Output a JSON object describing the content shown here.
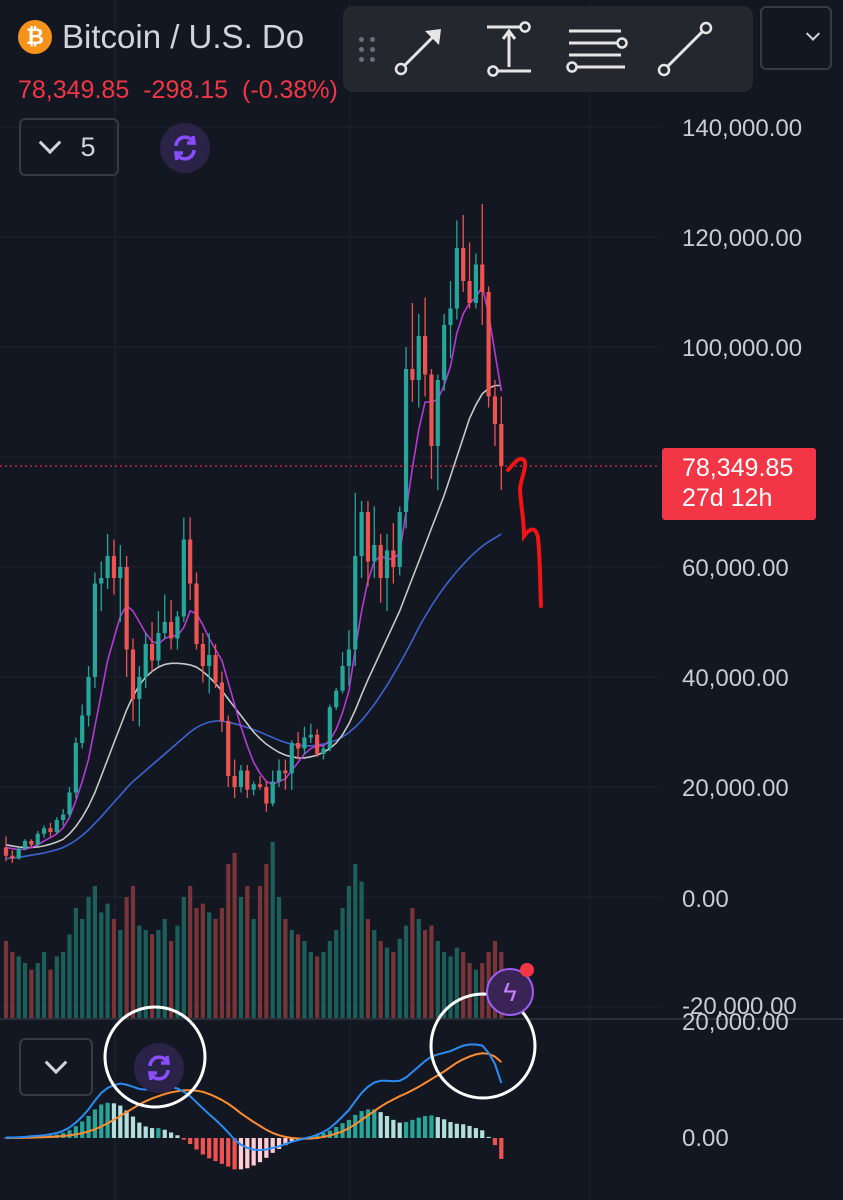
{
  "header": {
    "title": "Bitcoin / U.S. Do",
    "last_price": "78,349.85",
    "change": "-298.15",
    "change_pct": "(-0.38%)",
    "indicator_count": "5",
    "logo_symbol": "₿"
  },
  "toolbar": {
    "tools": [
      "arrow-tool",
      "price-range-tool",
      "parallel-lines-tool",
      "trend-line-tool"
    ]
  },
  "price_tag": {
    "price": "78,349.85",
    "countdown": "27d 12h"
  },
  "price_axis": {
    "labels": [
      "140,000.00",
      "120,000.00",
      "100,000.00",
      "60,000.00",
      "40,000.00",
      "20,000.00",
      "0.00",
      "-20,000.00"
    ],
    "macd_labels": [
      "20,000.00",
      "0.00"
    ]
  },
  "colors": {
    "background": "#131722",
    "up": "#26a69a",
    "down": "#ef5350",
    "up_volume": "#1f6b64",
    "down_volume": "#8b3a3a",
    "ma_fast": "#b43ad6",
    "ma_mid": "#c8c8c8",
    "ma_slow": "#3c64d2",
    "macd_line": "#2b8cf3",
    "signal_line": "#ff8c2e",
    "drawing": "#f01414",
    "price_tag": "#f23645"
  },
  "chart_data": {
    "type": "candlestick",
    "title": "Bitcoin / U.S. Dollar",
    "price_ylim": [
      -20000,
      140000
    ],
    "last_price": 78349.85,
    "candles": [
      [
        9000,
        11000,
        6500,
        7500
      ],
      [
        7500,
        8500,
        6200,
        7000
      ],
      [
        7000,
        9000,
        6800,
        8800
      ],
      [
        8800,
        10500,
        8500,
        10200
      ],
      [
        10200,
        10500,
        9000,
        9500
      ],
      [
        9500,
        12000,
        9200,
        11500
      ],
      [
        11500,
        13000,
        10800,
        12500
      ],
      [
        12500,
        13500,
        11000,
        11800
      ],
      [
        11800,
        14500,
        11500,
        14000
      ],
      [
        14000,
        16000,
        13000,
        15000
      ],
      [
        15000,
        20000,
        14500,
        19000
      ],
      [
        19000,
        29000,
        18000,
        28000
      ],
      [
        28000,
        35000,
        27000,
        33000
      ],
      [
        33000,
        42000,
        31000,
        40000
      ],
      [
        40000,
        59000,
        38000,
        57000
      ],
      [
        57000,
        61000,
        52000,
        58000
      ],
      [
        58000,
        66000,
        56000,
        62000
      ],
      [
        62000,
        65000,
        55000,
        58000
      ],
      [
        58000,
        64000,
        50000,
        60000
      ],
      [
        60000,
        62000,
        40000,
        45000
      ],
      [
        45000,
        47000,
        32000,
        36000
      ],
      [
        36000,
        42000,
        31000,
        40000
      ],
      [
        40000,
        48000,
        38000,
        46000
      ],
      [
        46000,
        50000,
        41000,
        43000
      ],
      [
        43000,
        52000,
        42000,
        48000
      ],
      [
        48000,
        55000,
        47000,
        50000
      ],
      [
        50000,
        54000,
        45000,
        47000
      ],
      [
        47000,
        52000,
        45000,
        51000
      ],
      [
        51000,
        69000,
        50000,
        65000
      ],
      [
        65000,
        69000,
        54000,
        57000
      ],
      [
        57000,
        59000,
        45000,
        46000
      ],
      [
        46000,
        48000,
        39000,
        42000
      ],
      [
        42000,
        48000,
        37000,
        44000
      ],
      [
        44000,
        46000,
        38000,
        39000
      ],
      [
        39000,
        41000,
        30000,
        32000
      ],
      [
        32000,
        33000,
        20000,
        22000
      ],
      [
        22000,
        25000,
        18000,
        20000
      ],
      [
        20000,
        24000,
        19000,
        23000
      ],
      [
        23000,
        24000,
        18000,
        19500
      ],
      [
        19500,
        21000,
        18500,
        20500
      ],
      [
        20500,
        22000,
        19500,
        20000
      ],
      [
        20000,
        21000,
        15500,
        17000
      ],
      [
        17000,
        23000,
        16500,
        21000
      ],
      [
        21000,
        25000,
        20000,
        23000
      ],
      [
        23000,
        25000,
        19500,
        22500
      ],
      [
        22500,
        28500,
        19500,
        28000
      ],
      [
        28000,
        30000,
        25000,
        27000
      ],
      [
        27000,
        31000,
        26000,
        29000
      ],
      [
        29000,
        31500,
        28000,
        29500
      ],
      [
        29500,
        30500,
        25500,
        26000
      ],
      [
        26000,
        27500,
        25000,
        27000
      ],
      [
        27000,
        35000,
        26500,
        34500
      ],
      [
        34500,
        38000,
        34000,
        37500
      ],
      [
        37500,
        44500,
        37000,
        42000
      ],
      [
        42000,
        48500,
        38500,
        45000
      ],
      [
        45000,
        73500,
        42000,
        62000
      ],
      [
        62000,
        72000,
        58000,
        70000
      ],
      [
        70000,
        72000,
        56500,
        61000
      ],
      [
        61000,
        71000,
        58000,
        64000
      ],
      [
        64000,
        66000,
        53500,
        58000
      ],
      [
        58000,
        66000,
        52000,
        63000
      ],
      [
        63000,
        68000,
        57000,
        60000
      ],
      [
        60000,
        71000,
        58500,
        70000
      ],
      [
        70000,
        100000,
        67000,
        96000
      ],
      [
        96000,
        108000,
        90000,
        94000
      ],
      [
        94000,
        106000,
        89000,
        102000
      ],
      [
        102000,
        109000,
        91000,
        95000
      ],
      [
        95000,
        96000,
        76000,
        82000
      ],
      [
        82000,
        95000,
        74000,
        94000
      ],
      [
        94000,
        106000,
        92000,
        104000
      ],
      [
        104000,
        112000,
        98000,
        107000
      ],
      [
        107000,
        123000,
        105000,
        118000
      ],
      [
        118000,
        124000,
        110000,
        112000
      ],
      [
        112000,
        119000,
        107000,
        108000
      ],
      [
        108000,
        117000,
        107000,
        115000
      ],
      [
        115000,
        126000,
        104000,
        110000
      ],
      [
        110000,
        111000,
        89000,
        91000
      ],
      [
        91000,
        94000,
        82000,
        86000
      ],
      [
        86000,
        91000,
        74000,
        78349.85
      ]
    ],
    "volume": [
      0.35,
      0.3,
      0.28,
      0.25,
      0.22,
      0.25,
      0.3,
      0.22,
      0.28,
      0.3,
      0.38,
      0.5,
      0.45,
      0.55,
      0.6,
      0.48,
      0.52,
      0.45,
      0.4,
      0.55,
      0.6,
      0.42,
      0.4,
      0.38,
      0.4,
      0.45,
      0.35,
      0.42,
      0.55,
      0.6,
      0.5,
      0.52,
      0.48,
      0.45,
      0.5,
      0.7,
      0.75,
      0.55,
      0.6,
      0.45,
      0.6,
      0.7,
      0.8,
      0.55,
      0.45,
      0.4,
      0.38,
      0.35,
      0.3,
      0.28,
      0.3,
      0.35,
      0.4,
      0.5,
      0.6,
      0.7,
      0.62,
      0.45,
      0.4,
      0.35,
      0.32,
      0.3,
      0.36,
      0.42,
      0.5,
      0.45,
      0.4,
      0.42,
      0.35,
      0.3,
      0.28,
      0.32,
      0.3,
      0.25,
      0.22,
      0.25,
      0.3,
      0.35,
      0.3
    ],
    "ma_fast": [
      9000,
      8800,
      8600,
      8700,
      9000,
      9500,
      10200,
      10800,
      11500,
      12600,
      14500,
      17500,
      21000,
      25000,
      31000,
      37000,
      43000,
      47000,
      51000,
      53000,
      52000,
      50000,
      48000,
      46500,
      46000,
      47000,
      47500,
      47500,
      49000,
      52000,
      51500,
      49500,
      47000,
      45000,
      43000,
      39000,
      35000,
      31000,
      27500,
      24500,
      22500,
      21000,
      20500,
      21000,
      21500,
      23000,
      24500,
      26000,
      27000,
      27500,
      27500,
      28500,
      30500,
      33500,
      37500,
      45000,
      52000,
      57500,
      61000,
      62000,
      61500,
      61500,
      62500,
      70000,
      78000,
      85000,
      90000,
      90000,
      90500,
      93000,
      96500,
      102500,
      106000,
      108000,
      109000,
      111000,
      106000,
      99000,
      92000
    ],
    "ma_mid": [
      9500,
      9300,
      9100,
      9000,
      9000,
      9100,
      9300,
      9600,
      10000,
      10500,
      11500,
      12800,
      14500,
      16500,
      19000,
      22000,
      25000,
      28000,
      31000,
      34000,
      36500,
      38500,
      40000,
      41000,
      41800,
      42300,
      42500,
      42500,
      42400,
      42200,
      41800,
      41000,
      40000,
      38800,
      37500,
      36000,
      34500,
      33000,
      31500,
      30000,
      28800,
      27800,
      27000,
      26300,
      25800,
      25500,
      25300,
      25300,
      25500,
      25800,
      26300,
      27000,
      28000,
      29500,
      31500,
      34000,
      36800,
      39500,
      42000,
      44500,
      47000,
      49500,
      52000,
      55000,
      58000,
      61000,
      64000,
      67000,
      70000,
      73000,
      76500,
      80000,
      83500,
      87000,
      89500,
      91500,
      92500,
      93000,
      93000
    ],
    "ma_slow": [
      7000,
      7100,
      7200,
      7400,
      7600,
      7800,
      8000,
      8300,
      8600,
      9000,
      9600,
      10300,
      11200,
      12200,
      13400,
      14600,
      15900,
      17200,
      18500,
      19800,
      21000,
      22000,
      23000,
      24000,
      25000,
      26000,
      27000,
      28000,
      29000,
      30000,
      30800,
      31400,
      31800,
      32000,
      32000,
      31800,
      31500,
      31200,
      30800,
      30400,
      30000,
      29500,
      29000,
      28500,
      28100,
      27800,
      27600,
      27500,
      27500,
      27600,
      27800,
      28100,
      28500,
      29100,
      29900,
      30900,
      32100,
      33500,
      35000,
      36700,
      38500,
      40400,
      42400,
      44500,
      46700,
      49000,
      51000,
      52900,
      54700,
      56300,
      57800,
      59200,
      60500,
      61700,
      62800,
      63800,
      64600,
      65300,
      66000
    ],
    "macd": {
      "ylim": [
        -2500,
        20000
      ],
      "macd_line": [
        100,
        100,
        150,
        200,
        300,
        400,
        500,
        700,
        900,
        1300,
        1900,
        2800,
        3900,
        5200,
        6800,
        8200,
        9100,
        9600,
        9900,
        9700,
        9300,
        8900,
        8800,
        9000,
        9400,
        9500,
        9300,
        9000,
        8400,
        7600,
        6500,
        5400,
        4300,
        3300,
        2200,
        1000,
        -300,
        -1200,
        -1800,
        -2100,
        -2200,
        -2100,
        -1800,
        -1500,
        -1100,
        -700,
        -400,
        -100,
        200,
        600,
        1100,
        1800,
        2800,
        3900,
        5100,
        6700,
        8200,
        9300,
        10100,
        10400,
        10400,
        10300,
        10400,
        11000,
        12000,
        13000,
        14000,
        14800,
        15200,
        15500,
        15800,
        16300,
        16800,
        17000,
        17000,
        16800,
        15500,
        13500,
        10000
      ],
      "signal_line": [
        0,
        10,
        25,
        45,
        70,
        110,
        150,
        200,
        270,
        360,
        480,
        650,
        880,
        1200,
        1600,
        2100,
        2700,
        3300,
        4000,
        4700,
        5400,
        6100,
        6700,
        7200,
        7600,
        8000,
        8300,
        8500,
        8700,
        8700,
        8600,
        8400,
        8000,
        7500,
        6900,
        6200,
        5400,
        4500,
        3700,
        2900,
        2200,
        1500,
        900,
        500,
        200,
        0,
        -100,
        -150,
        -100,
        0,
        200,
        450,
        800,
        1200,
        1800,
        2500,
        3300,
        4100,
        4900,
        5700,
        6400,
        7000,
        7600,
        8100,
        8700,
        9300,
        10000,
        10700,
        11400,
        12100,
        12900,
        13700,
        14300,
        14800,
        15200,
        15400,
        15300,
        14800,
        13800
      ]
    }
  }
}
